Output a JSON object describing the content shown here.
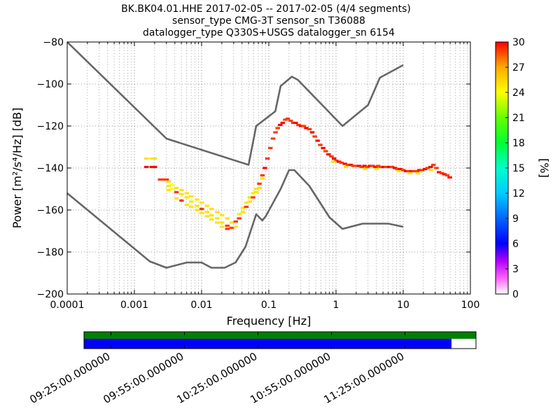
{
  "title_lines": [
    "BK.BK04.01.HHE   2017-02-05 -- 2017-02-05  (4/4 segments)",
    "sensor_type CMG-3T sensor_sn T36088",
    "datalogger_type Q330S+USGS datalogger_sn 6154"
  ],
  "colors": {
    "noise_model": "#666666",
    "grid": "#000000",
    "coverage_data": "#008000",
    "coverage_gaps": "#0000ff"
  },
  "chart_data": {
    "type": "heatmap",
    "xlabel": "Frequency [Hz]",
    "ylabel": "Power [m²/s⁴/Hz] [dB]",
    "xscale": "log",
    "xlim": [
      0.0001,
      100
    ],
    "ylim": [
      -200,
      -80
    ],
    "grid": true,
    "x_ticks": [
      0.0001,
      0.001,
      0.01,
      0.1,
      1,
      10,
      100
    ],
    "x_tick_labels": [
      "0.0001",
      "0.001",
      "0.01",
      "0.1",
      "1",
      "10",
      "100"
    ],
    "y_ticks": [
      -200,
      -180,
      -160,
      -140,
      -120,
      -100,
      -80
    ],
    "y_tick_labels": [
      "−200",
      "−180",
      "−160",
      "−140",
      "−120",
      "−100",
      "−80"
    ],
    "colorbar": {
      "label": "[%]",
      "range": [
        0,
        30
      ],
      "ticks": [
        0,
        3,
        6,
        9,
        12,
        15,
        18,
        21,
        24,
        27,
        30
      ],
      "tick_labels": [
        "0",
        "3",
        "6",
        "9",
        "12",
        "15",
        "18",
        "21",
        "24",
        "27",
        "30"
      ]
    },
    "noise_models": [
      {
        "kind": "high",
        "points": [
          [
            0.0001,
            -80
          ],
          [
            0.003,
            -126
          ],
          [
            0.05,
            -138.5
          ],
          [
            0.065,
            -120
          ],
          [
            0.125,
            -113
          ],
          [
            0.15,
            -101
          ],
          [
            0.22,
            -96.5
          ],
          [
            0.27,
            -98
          ],
          [
            1.25,
            -120
          ],
          [
            3,
            -110
          ],
          [
            4.5,
            -97
          ],
          [
            10,
            -91
          ]
        ]
      },
      {
        "kind": "low",
        "points": [
          [
            0.0001,
            -152
          ],
          [
            0.0017,
            -184.5
          ],
          [
            0.003,
            -187.5
          ],
          [
            0.006,
            -185
          ],
          [
            0.01,
            -185
          ],
          [
            0.014,
            -187.5
          ],
          [
            0.022,
            -187.5
          ],
          [
            0.032,
            -185
          ],
          [
            0.045,
            -177.5
          ],
          [
            0.065,
            -162
          ],
          [
            0.08,
            -165
          ],
          [
            0.09,
            -163
          ],
          [
            0.15,
            -150
          ],
          [
            0.2,
            -141
          ],
          [
            0.24,
            -141
          ],
          [
            0.4,
            -148.5
          ],
          [
            0.8,
            -163.5
          ],
          [
            1.25,
            -169
          ],
          [
            2.5,
            -166.5
          ],
          [
            6,
            -166.5
          ],
          [
            10,
            -168
          ]
        ]
      }
    ],
    "psd_cells": [
      {
        "f": 0.0015,
        "db": -135.5,
        "pct": 25
      },
      {
        "f": 0.0018,
        "db": -135.5,
        "pct": 25
      },
      {
        "f": 0.002,
        "db": -135.5,
        "pct": 25
      },
      {
        "f": 0.0015,
        "db": -139.5,
        "pct": 30
      },
      {
        "f": 0.0018,
        "db": -139.5,
        "pct": 30
      },
      {
        "f": 0.002,
        "db": -139.5,
        "pct": 30
      },
      {
        "f": 0.0024,
        "db": -145.5,
        "pct": 29
      },
      {
        "f": 0.0027,
        "db": -145.5,
        "pct": 29
      },
      {
        "f": 0.003,
        "db": -145.5,
        "pct": 29
      },
      {
        "f": 0.0032,
        "db": -146.5,
        "pct": 25
      },
      {
        "f": 0.0032,
        "db": -148.5,
        "pct": 25
      },
      {
        "f": 0.0032,
        "db": -150.5,
        "pct": 25
      },
      {
        "f": 0.0036,
        "db": -148,
        "pct": 24
      },
      {
        "f": 0.0036,
        "db": -150,
        "pct": 24
      },
      {
        "f": 0.0042,
        "db": -149.5,
        "pct": 25
      },
      {
        "f": 0.0042,
        "db": -151.5,
        "pct": 29
      },
      {
        "f": 0.0042,
        "db": -154.5,
        "pct": 25
      },
      {
        "f": 0.005,
        "db": -150.5,
        "pct": 25
      },
      {
        "f": 0.005,
        "db": -152.5,
        "pct": 25
      },
      {
        "f": 0.005,
        "db": -155.5,
        "pct": 29
      },
      {
        "f": 0.006,
        "db": -152,
        "pct": 25
      },
      {
        "f": 0.006,
        "db": -154,
        "pct": 25
      },
      {
        "f": 0.006,
        "db": -157.5,
        "pct": 25
      },
      {
        "f": 0.007,
        "db": -153.5,
        "pct": 25
      },
      {
        "f": 0.007,
        "db": -156,
        "pct": 25
      },
      {
        "f": 0.007,
        "db": -158.5,
        "pct": 25
      },
      {
        "f": 0.0085,
        "db": -155,
        "pct": 25
      },
      {
        "f": 0.0085,
        "db": -158,
        "pct": 25
      },
      {
        "f": 0.0085,
        "db": -160,
        "pct": 25
      },
      {
        "f": 0.01,
        "db": -156.5,
        "pct": 25
      },
      {
        "f": 0.01,
        "db": -159.5,
        "pct": 29
      },
      {
        "f": 0.01,
        "db": -161.5,
        "pct": 25
      },
      {
        "f": 0.012,
        "db": -158,
        "pct": 25
      },
      {
        "f": 0.012,
        "db": -161,
        "pct": 25
      },
      {
        "f": 0.012,
        "db": -163,
        "pct": 25
      },
      {
        "f": 0.014,
        "db": -159.5,
        "pct": 25
      },
      {
        "f": 0.014,
        "db": -162.5,
        "pct": 25
      },
      {
        "f": 0.014,
        "db": -164.5,
        "pct": 25
      },
      {
        "f": 0.017,
        "db": -161,
        "pct": 25
      },
      {
        "f": 0.017,
        "db": -164,
        "pct": 25
      },
      {
        "f": 0.017,
        "db": -166,
        "pct": 25
      },
      {
        "f": 0.02,
        "db": -162.5,
        "pct": 25
      },
      {
        "f": 0.02,
        "db": -166,
        "pct": 25
      },
      {
        "f": 0.02,
        "db": -168,
        "pct": 25
      },
      {
        "f": 0.024,
        "db": -164,
        "pct": 25
      },
      {
        "f": 0.024,
        "db": -167.5,
        "pct": 29
      },
      {
        "f": 0.024,
        "db": -169,
        "pct": 29
      },
      {
        "f": 0.028,
        "db": -166,
        "pct": 25
      },
      {
        "f": 0.028,
        "db": -168.5,
        "pct": 29
      },
      {
        "f": 0.032,
        "db": -165.5,
        "pct": 29
      },
      {
        "f": 0.032,
        "db": -168,
        "pct": 25
      },
      {
        "f": 0.036,
        "db": -162,
        "pct": 25
      },
      {
        "f": 0.036,
        "db": -164,
        "pct": 29
      },
      {
        "f": 0.041,
        "db": -159,
        "pct": 25
      },
      {
        "f": 0.041,
        "db": -161,
        "pct": 25
      },
      {
        "f": 0.046,
        "db": -156.5,
        "pct": 25
      },
      {
        "f": 0.046,
        "db": -158.5,
        "pct": 29
      },
      {
        "f": 0.052,
        "db": -154,
        "pct": 25
      },
      {
        "f": 0.052,
        "db": -156,
        "pct": 25
      },
      {
        "f": 0.058,
        "db": -152,
        "pct": 25
      },
      {
        "f": 0.058,
        "db": -154,
        "pct": 29
      },
      {
        "f": 0.065,
        "db": -150,
        "pct": 25
      },
      {
        "f": 0.065,
        "db": -151.5,
        "pct": 25
      },
      {
        "f": 0.072,
        "db": -147.5,
        "pct": 29
      },
      {
        "f": 0.072,
        "db": -149.5,
        "pct": 25
      },
      {
        "f": 0.08,
        "db": -143.5,
        "pct": 29
      },
      {
        "f": 0.08,
        "db": -145,
        "pct": 25
      },
      {
        "f": 0.087,
        "db": -140,
        "pct": 30
      },
      {
        "f": 0.095,
        "db": -135.5,
        "pct": 29
      },
      {
        "f": 0.105,
        "db": -130.5,
        "pct": 29
      },
      {
        "f": 0.115,
        "db": -126,
        "pct": 29
      },
      {
        "f": 0.125,
        "db": -123,
        "pct": 29
      },
      {
        "f": 0.135,
        "db": -121,
        "pct": 29
      },
      {
        "f": 0.147,
        "db": -119.5,
        "pct": 30
      },
      {
        "f": 0.16,
        "db": -118.5,
        "pct": 30
      },
      {
        "f": 0.175,
        "db": -117,
        "pct": 29
      },
      {
        "f": 0.19,
        "db": -116.5,
        "pct": 29
      },
      {
        "f": 0.21,
        "db": -117.5,
        "pct": 29
      },
      {
        "f": 0.23,
        "db": -118.5,
        "pct": 29
      },
      {
        "f": 0.25,
        "db": -118.5,
        "pct": 30
      },
      {
        "f": 0.275,
        "db": -119.5,
        "pct": 29
      },
      {
        "f": 0.3,
        "db": -120,
        "pct": 30
      },
      {
        "f": 0.33,
        "db": -120,
        "pct": 29
      },
      {
        "f": 0.36,
        "db": -121,
        "pct": 30
      },
      {
        "f": 0.4,
        "db": -121.5,
        "pct": 29
      },
      {
        "f": 0.44,
        "db": -123,
        "pct": 30
      },
      {
        "f": 0.48,
        "db": -125,
        "pct": 29
      },
      {
        "f": 0.53,
        "db": -127,
        "pct": 30
      },
      {
        "f": 0.58,
        "db": -129,
        "pct": 29
      },
      {
        "f": 0.64,
        "db": -130.5,
        "pct": 30
      },
      {
        "f": 0.7,
        "db": -132,
        "pct": 29
      },
      {
        "f": 0.77,
        "db": -133.5,
        "pct": 30
      },
      {
        "f": 0.85,
        "db": -134.5,
        "pct": 29
      },
      {
        "f": 0.93,
        "db": -135.5,
        "pct": 30
      },
      {
        "f": 1.0,
        "db": -136.5,
        "pct": 29
      },
      {
        "f": 1.1,
        "db": -137,
        "pct": 30
      },
      {
        "f": 1.2,
        "db": -137.5,
        "pct": 29
      },
      {
        "f": 1.35,
        "db": -138,
        "pct": 30
      },
      {
        "f": 1.5,
        "db": -138.5,
        "pct": 29
      },
      {
        "f": 1.65,
        "db": -138.5,
        "pct": 30
      },
      {
        "f": 1.8,
        "db": -139,
        "pct": 29
      },
      {
        "f": 2.0,
        "db": -139,
        "pct": 29
      },
      {
        "f": 2.2,
        "db": -139,
        "pct": 30
      },
      {
        "f": 2.4,
        "db": -139.5,
        "pct": 29
      },
      {
        "f": 2.65,
        "db": -139,
        "pct": 30
      },
      {
        "f": 2.9,
        "db": -139.5,
        "pct": 29
      },
      {
        "f": 3.2,
        "db": -139,
        "pct": 30
      },
      {
        "f": 3.5,
        "db": -139,
        "pct": 29
      },
      {
        "f": 3.85,
        "db": -139.5,
        "pct": 30
      },
      {
        "f": 4.2,
        "db": -139,
        "pct": 29
      },
      {
        "f": 4.6,
        "db": -139.5,
        "pct": 29
      },
      {
        "f": 5.1,
        "db": -139.5,
        "pct": 30
      },
      {
        "f": 5.6,
        "db": -139.5,
        "pct": 29
      },
      {
        "f": 6.2,
        "db": -139.5,
        "pct": 30
      },
      {
        "f": 6.8,
        "db": -139.5,
        "pct": 29
      },
      {
        "f": 7.5,
        "db": -140,
        "pct": 30
      },
      {
        "f": 8.2,
        "db": -140.5,
        "pct": 29
      },
      {
        "f": 9.0,
        "db": -140.5,
        "pct": 30
      },
      {
        "f": 10.0,
        "db": -141,
        "pct": 29
      },
      {
        "f": 11.0,
        "db": -141.5,
        "pct": 30
      },
      {
        "f": 12.0,
        "db": -141.5,
        "pct": 29
      },
      {
        "f": 13.2,
        "db": -141.5,
        "pct": 30
      },
      {
        "f": 14.5,
        "db": -141.5,
        "pct": 29
      },
      {
        "f": 16.0,
        "db": -141.5,
        "pct": 29
      },
      {
        "f": 17.5,
        "db": -141,
        "pct": 30
      },
      {
        "f": 19.0,
        "db": -141,
        "pct": 29
      },
      {
        "f": 21.0,
        "db": -140.5,
        "pct": 30
      },
      {
        "f": 23.0,
        "db": -140,
        "pct": 29
      },
      {
        "f": 25.5,
        "db": -139.5,
        "pct": 30
      },
      {
        "f": 28.0,
        "db": -138.5,
        "pct": 29
      },
      {
        "f": 31.0,
        "db": -140,
        "pct": 29
      },
      {
        "f": 34.0,
        "db": -142,
        "pct": 30
      },
      {
        "f": 37.5,
        "db": -142.5,
        "pct": 29
      },
      {
        "f": 41.0,
        "db": -143,
        "pct": 30
      },
      {
        "f": 45.0,
        "db": -143.5,
        "pct": 29
      },
      {
        "f": 49.0,
        "db": -144.5,
        "pct": 30
      },
      {
        "f": 0.9,
        "db": -137,
        "pct": 25
      },
      {
        "f": 1.4,
        "db": -139.5,
        "pct": 25
      },
      {
        "f": 2.7,
        "db": -140.5,
        "pct": 25
      },
      {
        "f": 4.0,
        "db": -140.5,
        "pct": 25
      },
      {
        "f": 8.5,
        "db": -141.5,
        "pct": 25
      },
      {
        "f": 12.5,
        "db": -142.5,
        "pct": 25
      },
      {
        "f": 16.5,
        "db": -142.5,
        "pct": 25
      },
      {
        "f": 26.0,
        "db": -141,
        "pct": 25
      }
    ],
    "coverage": {
      "start": "2017-02-05 09:14:00",
      "end": "2017-02-05 11:54:00",
      "data_span": [
        "2017-02-05 09:14:00",
        "2017-02-05 11:54:00"
      ],
      "psd_span": [
        "2017-02-05 09:14:00",
        "2017-02-05 11:44:00"
      ],
      "ticks": [
        "2017-02-05 09:25:00",
        "2017-02-05 09:55:00",
        "2017-02-05 10:25:00",
        "2017-02-05 10:55:00",
        "2017-02-05 11:25:00"
      ],
      "tick_labels": [
        "09:25:00.000000",
        "09:55:00.000000",
        "10:25:00.000000",
        "10:55:00.000000",
        "11:25:00.000000"
      ]
    }
  }
}
